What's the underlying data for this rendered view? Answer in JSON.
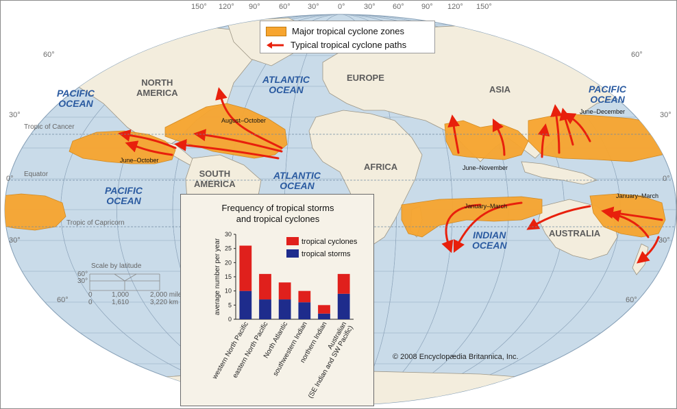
{
  "longitudes": [
    "150°",
    "120°",
    "90°",
    "60°",
    "30°",
    "0°",
    "30°",
    "60°",
    "90°",
    "120°",
    "150°"
  ],
  "latitudes": {
    "left": [
      "60°",
      "30°",
      "0°",
      "30°",
      "60°"
    ],
    "right": [
      "60°",
      "30°",
      "0°",
      "30°",
      "60°"
    ]
  },
  "legend": {
    "zones_label": "Major tropical cyclone zones",
    "paths_label": "Typical tropical cyclone paths"
  },
  "oceans": {
    "pacific_nw": [
      "PACIFIC",
      "OCEAN"
    ],
    "pacific_ne": [
      "PACIFIC",
      "OCEAN"
    ],
    "pacific_s": [
      "PACIFIC",
      "OCEAN"
    ],
    "atlantic_n": [
      "ATLANTIC",
      "OCEAN"
    ],
    "atlantic_s": [
      "ATLANTIC",
      "OCEAN"
    ],
    "indian": [
      "INDIAN",
      "OCEAN"
    ]
  },
  "continents": {
    "north_america": [
      "NORTH",
      "AMERICA"
    ],
    "south_america": [
      "SOUTH",
      "AMERICA"
    ],
    "europe": "EUROPE",
    "asia": "ASIA",
    "africa": "AFRICA",
    "australia": "AUSTRALIA"
  },
  "geo_lines": {
    "cancer": "Tropic of Cancer",
    "equator": "Equator",
    "capricorn": "Tropic of Capricorn"
  },
  "zones": {
    "aug_oct": "August–October",
    "jun_oct": "June–October",
    "jun_dec": "June–December",
    "jun_nov": "June–November",
    "jan_mar_indian": "January–March",
    "jan_mar_pacific": "January–March"
  },
  "scale": {
    "title": "Scale by latitude",
    "lat_60": "60°",
    "lat_30": "30°",
    "row1": [
      "0",
      "1,000",
      "2,000 miles"
    ],
    "row2": [
      "0",
      "1,610",
      "3,220 km"
    ]
  },
  "copyright": "© 2008 Encyclopædia Britannica, Inc.",
  "chart_data": {
    "type": "bar",
    "title": "Frequency of tropical storms and tropical cyclones",
    "title_lines": [
      "Frequency of tropical storms",
      "and tropical cyclones"
    ],
    "ylabel": "average number per year",
    "ylim": [
      0,
      30
    ],
    "yticks": [
      0,
      5,
      10,
      15,
      20,
      25,
      30
    ],
    "categories": [
      "western North Pacific",
      "eastern North Pacific",
      "North Atlantic",
      "southwestern Indian",
      "northern Indian",
      "Australian (SE Indian and SW Pacific)"
    ],
    "category_lines": [
      [
        "western North Pacific"
      ],
      [
        "eastern North Pacific"
      ],
      [
        "North Atlantic"
      ],
      [
        "southwestern Indian"
      ],
      [
        "northern Indian"
      ],
      [
        "Australian",
        "(SE Indian and SW Pacific)"
      ]
    ],
    "stacked": true,
    "series": [
      {
        "name": "tropical storms",
        "color": "#1e2c8c",
        "values": [
          10,
          7,
          7,
          6,
          2,
          9
        ]
      },
      {
        "name": "tropical cyclones",
        "color": "#e0201c",
        "values": [
          16,
          9,
          6,
          4,
          3,
          7
        ]
      }
    ],
    "legend": "top-right"
  },
  "colors": {
    "ocean": "#c9dbe9",
    "land": "#f3eddd",
    "zone": "#f7a52f",
    "path": "#e8200c",
    "grid": "#8fa6bc"
  }
}
